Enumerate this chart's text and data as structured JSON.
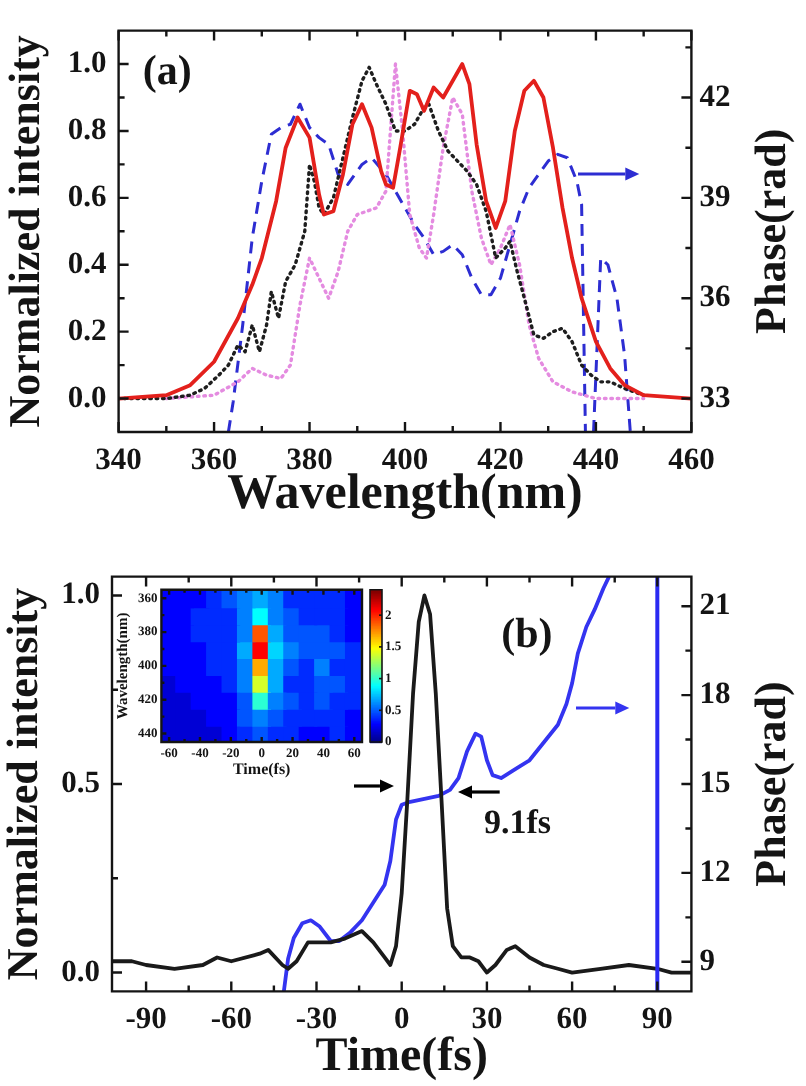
{
  "chart_data": [
    {
      "type": "line",
      "xlabel": "Wavelength(nm)",
      "ylabel": "Normalized intensity",
      "y2label": "Phase(rad)",
      "annotations": [
        "(a)"
      ],
      "xlim": [
        340,
        460
      ],
      "xticks": [
        340,
        {
          "value": 350,
          "label": null
        },
        360,
        {
          "value": 370,
          "label": null
        },
        380,
        {
          "value": 390,
          "label": null
        },
        400,
        {
          "value": 410,
          "label": null
        },
        420,
        {
          "value": 430,
          "label": null
        },
        440,
        {
          "value": 450,
          "label": null
        },
        460
      ],
      "ylim": [
        -0.1,
        1.1
      ],
      "yticks": [
        {
          "value": 0,
          "label": "0.0"
        },
        {
          "value": 0.1,
          "label": null
        },
        0.2,
        {
          "value": 0.3,
          "label": null
        },
        0.4,
        {
          "value": 0.5,
          "label": null
        },
        0.6,
        {
          "value": 0.7,
          "label": null
        },
        0.8,
        {
          "value": 0.9,
          "label": null
        },
        {
          "value": 1,
          "label": "1.0"
        }
      ],
      "y2lim": [
        32,
        44
      ],
      "y2ticks": [
        33,
        {
          "value": 34.5,
          "label": null
        },
        36,
        {
          "value": 37.5,
          "label": null
        },
        39,
        {
          "value": 40.5,
          "label": null
        },
        42,
        {
          "value": 43.5,
          "label": null
        }
      ],
      "series": [
        {
          "color": "#e3201c",
          "line_style": "solid",
          "x": [
            340,
            350,
            355,
            360,
            365,
            368,
            370,
            373,
            375,
            377.5,
            380,
            382,
            383,
            385,
            387,
            389,
            391,
            393,
            395,
            396,
            397.5,
            399,
            401,
            402.5,
            404,
            406,
            408,
            410,
            412,
            413.5,
            415,
            417,
            419,
            421,
            423,
            425,
            427,
            429,
            431,
            433,
            435,
            437,
            440,
            443,
            446,
            450,
            460
          ],
          "values": [
            0,
            0.01,
            0.04,
            0.11,
            0.24,
            0.34,
            0.42,
            0.59,
            0.75,
            0.84,
            0.78,
            0.61,
            0.55,
            0.56,
            0.67,
            0.82,
            0.88,
            0.81,
            0.68,
            0.64,
            0.63,
            0.75,
            0.92,
            0.91,
            0.86,
            0.93,
            0.9,
            0.95,
            1.0,
            0.94,
            0.76,
            0.59,
            0.51,
            0.59,
            0.8,
            0.92,
            0.95,
            0.9,
            0.75,
            0.57,
            0.42,
            0.3,
            0.17,
            0.09,
            0.04,
            0.01,
            0
          ]
        },
        {
          "color": "#1e1e1e",
          "line_style": "dotted",
          "x": [
            340,
            350,
            355,
            358,
            361,
            363,
            365,
            366.5,
            368,
            369.5,
            371,
            372,
            373.5,
            375,
            377,
            379,
            380,
            381,
            382,
            383,
            385,
            387,
            389,
            391,
            392.5,
            394,
            396,
            398,
            400,
            402,
            404,
            405,
            407,
            409,
            411,
            413,
            415,
            417,
            419,
            421,
            422,
            423.5,
            425,
            427,
            429,
            431,
            433,
            435,
            437,
            439,
            441,
            443,
            446,
            450
          ],
          "values": [
            0,
            0,
            0.01,
            0.03,
            0.07,
            0.1,
            0.16,
            0.14,
            0.22,
            0.14,
            0.22,
            0.32,
            0.24,
            0.35,
            0.4,
            0.5,
            0.7,
            0.65,
            0.57,
            0.55,
            0.6,
            0.72,
            0.84,
            0.95,
            0.99,
            0.94,
            0.88,
            0.8,
            0.8,
            0.82,
            0.87,
            0.88,
            0.8,
            0.74,
            0.71,
            0.68,
            0.64,
            0.56,
            0.42,
            0.45,
            0.47,
            0.38,
            0.3,
            0.19,
            0.18,
            0.2,
            0.21,
            0.17,
            0.1,
            0.07,
            0.05,
            0.05,
            0.03,
            0.01
          ]
        },
        {
          "color": "#e48be0",
          "line_style": "dotted",
          "x": [
            350,
            360,
            365,
            368,
            371,
            374,
            376,
            378,
            380,
            382,
            384,
            386,
            388,
            390,
            392,
            394,
            396,
            398,
            399.5,
            401,
            403,
            404.5,
            406,
            408,
            410,
            412,
            414,
            416,
            418,
            420,
            422,
            424,
            426,
            428,
            431,
            435,
            440,
            450
          ],
          "values": [
            0,
            0.01,
            0.05,
            0.09,
            0.07,
            0.06,
            0.1,
            0.28,
            0.42,
            0.36,
            0.3,
            0.38,
            0.5,
            0.55,
            0.56,
            0.57,
            0.62,
            1.0,
            0.8,
            0.55,
            0.45,
            0.42,
            0.55,
            0.75,
            0.9,
            0.85,
            0.62,
            0.48,
            0.4,
            0.45,
            0.52,
            0.4,
            0.22,
            0.12,
            0.05,
            0.02,
            0,
            0
          ]
        },
        {
          "color": "#2d2dd2",
          "line_style": "dashed",
          "axis": "y2",
          "x": [
            363,
            364,
            366,
            368,
            370,
            372,
            374,
            376,
            378,
            380,
            382,
            384,
            386,
            388,
            391,
            393,
            396,
            398,
            400,
            402,
            404,
            406,
            408,
            410,
            412,
            414,
            416,
            418,
            420,
            422,
            424,
            426,
            428,
            430,
            432,
            434,
            436,
            437,
            437.8,
            438.5,
            439.5,
            441,
            442.5,
            444.4,
            446,
            447.2
          ],
          "values": [
            32,
            32.9,
            35.2,
            37.8,
            39.5,
            40.9,
            41.1,
            41.2,
            41.8,
            41.1,
            40.8,
            40.6,
            39.7,
            39.4,
            40.0,
            40.2,
            39.7,
            39.2,
            38.7,
            38.2,
            37.8,
            37.3,
            37.4,
            37.6,
            37.3,
            36.6,
            36.1,
            36.1,
            36.6,
            37.6,
            38.6,
            39.3,
            39.7,
            40.1,
            40.3,
            40.2,
            39.5,
            38.8,
            32,
            null,
            32,
            37.2,
            37.0,
            36.0,
            34.3,
            32
          ]
        }
      ]
    },
    {
      "type": "line",
      "xlabel": "Time(fs)",
      "ylabel": "Normalized intensity",
      "y2label": "Phase(rad)",
      "annotations": [
        "(b)",
        "9.1fs"
      ],
      "xlim": [
        -102,
        102
      ],
      "xticks": [
        -90,
        {
          "value": -75,
          "label": null
        },
        -60,
        {
          "value": -45,
          "label": null
        },
        -30,
        {
          "value": -15,
          "label": null
        },
        0,
        {
          "value": 15,
          "label": null
        },
        30,
        {
          "value": 45,
          "label": null
        },
        60,
        {
          "value": 75,
          "label": null
        },
        90
      ],
      "ylim": [
        -0.05,
        1.05
      ],
      "yticks": [
        {
          "value": 0,
          "label": "0.0"
        },
        {
          "value": 0.25,
          "label": null
        },
        0.5,
        {
          "value": 0.75,
          "label": null
        },
        {
          "value": 1,
          "label": "1.0"
        }
      ],
      "y2lim": [
        8,
        22
      ],
      "y2ticks": [
        9,
        {
          "value": 10.5,
          "label": null
        },
        12,
        {
          "value": 13.5,
          "label": null
        },
        15,
        {
          "value": 16.5,
          "label": null
        },
        18,
        {
          "value": 19.5,
          "label": null
        },
        21
      ],
      "ref_lines": [
        {
          "axis": "x",
          "value": 90,
          "color": "#2a2af2"
        }
      ],
      "series": [
        {
          "color": "#1a1a1a",
          "line_style": "solid",
          "x": [
            -102,
            -95,
            -90,
            -80,
            -70,
            -65,
            -60,
            -50,
            -47,
            -42,
            -40,
            -37,
            -33,
            -30,
            -25,
            -20,
            -14,
            -10,
            -6,
            -4,
            -2,
            0,
            2,
            4,
            6,
            8,
            10,
            12,
            14,
            16,
            18,
            21,
            24,
            27,
            30,
            33,
            37,
            40,
            45,
            50,
            55,
            60,
            70,
            80,
            90,
            95,
            102
          ],
          "values": [
            0.03,
            0.03,
            0.02,
            0.01,
            0.02,
            0.04,
            0.03,
            0.05,
            0.06,
            0.02,
            0.01,
            0.03,
            0.08,
            0.08,
            0.08,
            0.09,
            0.11,
            0.08,
            0.04,
            0.02,
            0.07,
            0.21,
            0.46,
            0.74,
            0.93,
            1.0,
            0.95,
            0.74,
            0.46,
            0.17,
            0.07,
            0.04,
            0.04,
            0.03,
            0,
            0.02,
            0.06,
            0.07,
            0.04,
            0.02,
            0.01,
            0,
            0.01,
            0.02,
            0.01,
            0,
            0
          ]
        },
        {
          "color": "#3434f0",
          "line_style": "solid",
          "axis": "y2",
          "x": [
            -41.5,
            -40,
            -38,
            -35,
            -32,
            -29,
            -25,
            -22,
            -18,
            -14,
            -10,
            -6,
            -4,
            -2,
            0,
            3,
            8,
            13,
            17,
            20,
            23,
            26,
            28,
            30,
            32,
            35,
            40,
            45,
            50,
            55,
            58,
            60,
            62,
            65,
            68,
            71,
            73
          ],
          "values": [
            8,
            9.1,
            9.8,
            10.3,
            10.4,
            10.2,
            9.7,
            9.7,
            10.0,
            10.4,
            11.0,
            11.6,
            12.4,
            13.8,
            14.3,
            14.4,
            14.5,
            14.6,
            14.8,
            15.2,
            16.1,
            16.7,
            16.6,
            15.8,
            15.3,
            15.2,
            15.5,
            15.8,
            16.4,
            17.0,
            17.7,
            18.4,
            19.4,
            20.3,
            20.9,
            21.6,
            22
          ]
        }
      ]
    },
    {
      "type": "heatmap",
      "xlabel": "Time(fs)",
      "ylabel": "Wavelength(nm)",
      "categories": [
        "-60",
        null,
        "-40",
        null,
        "-20",
        null,
        "0",
        null,
        "20",
        null,
        "40",
        null,
        "60"
      ],
      "y_categories": [
        "360",
        null,
        "380",
        null,
        "400",
        null,
        "420",
        null,
        "440"
      ],
      "cells": [
        [
          0.3,
          0.3,
          0.3,
          0.4,
          0.5,
          0.6,
          0.7,
          0.6,
          0.4,
          0.4,
          0.4,
          0.4,
          0.3
        ],
        [
          0.3,
          0.3,
          0.4,
          0.4,
          0.4,
          0.6,
          0.9,
          0.6,
          0.5,
          0.4,
          0.4,
          0.4,
          0.3
        ],
        [
          0.3,
          0.3,
          0.4,
          0.4,
          0.4,
          0.6,
          1.9,
          0.7,
          0.5,
          0.5,
          0.5,
          0.4,
          0.3
        ],
        [
          0.3,
          0.3,
          0.3,
          0.4,
          0.4,
          0.7,
          2.1,
          0.8,
          0.6,
          0.5,
          0.5,
          0.5,
          0.4
        ],
        [
          0.3,
          0.3,
          0.3,
          0.4,
          0.4,
          0.6,
          1.7,
          0.7,
          0.5,
          0.4,
          0.6,
          0.4,
          0.4
        ],
        [
          0.2,
          0.3,
          0.3,
          0.3,
          0.4,
          0.6,
          1.4,
          0.7,
          0.4,
          0.4,
          0.5,
          0.5,
          0.4
        ],
        [
          0.2,
          0.2,
          0.3,
          0.3,
          0.3,
          0.5,
          1.0,
          0.6,
          0.5,
          0.4,
          0.5,
          0.4,
          0.4
        ],
        [
          0.2,
          0.2,
          0.2,
          0.3,
          0.3,
          0.5,
          0.6,
          0.5,
          0.4,
          0.4,
          0.4,
          0.4,
          0.3
        ],
        [
          0.2,
          0.2,
          0.2,
          0.2,
          0.3,
          0.4,
          0.5,
          0.4,
          0.4,
          0.3,
          0.3,
          0.4,
          0.3
        ]
      ],
      "clim": [
        0,
        2.4
      ],
      "cticks": [
        0,
        0.5,
        1,
        1.5,
        2
      ]
    }
  ]
}
